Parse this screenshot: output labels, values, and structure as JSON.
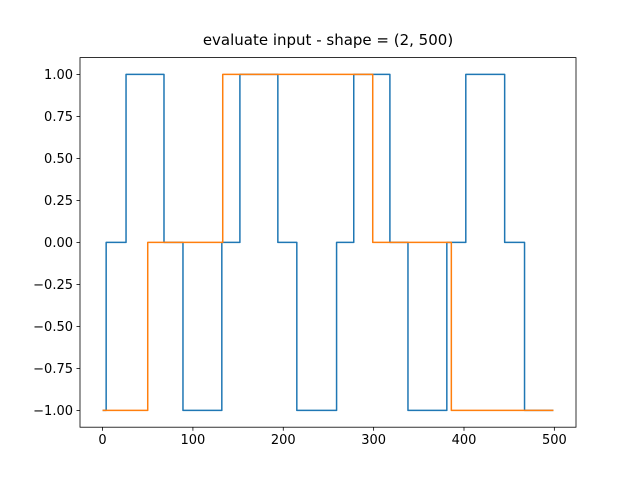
{
  "figure": {
    "background": "#ffffff"
  },
  "chart_data": {
    "type": "line",
    "subtype": "step",
    "title": "evaluate input - shape = (2, 500)",
    "xlabel": "",
    "ylabel": "",
    "grid": false,
    "legend": false,
    "xlim": [
      -24.95,
      523.95
    ],
    "ylim": [
      -1.1,
      1.1
    ],
    "x_ticks": [
      0,
      100,
      200,
      300,
      400,
      500
    ],
    "x_tick_labels": [
      "0",
      "100",
      "200",
      "300",
      "400",
      "500"
    ],
    "y_ticks": [
      1.0,
      0.75,
      0.5,
      0.25,
      0.0,
      -0.25,
      -0.5,
      -0.75,
      -1.0
    ],
    "y_tick_labels": [
      "1.00",
      "0.75",
      "0.50",
      "0.25",
      "0.00",
      "−0.25",
      "−0.50",
      "−0.75",
      "−1.00"
    ],
    "x_end": 499,
    "levels": [
      -1,
      0,
      1
    ],
    "series": [
      {
        "name": "series-0",
        "color": "#1f77b4",
        "transitions": [
          [
            0,
            -1
          ],
          [
            4,
            0
          ],
          [
            26,
            1
          ],
          [
            68,
            0
          ],
          [
            89,
            -1
          ],
          [
            132,
            0
          ],
          [
            152,
            1
          ],
          [
            194,
            0
          ],
          [
            215,
            -1
          ],
          [
            259,
            0
          ],
          [
            278,
            1
          ],
          [
            318,
            0
          ],
          [
            338,
            -1
          ],
          [
            381,
            0
          ],
          [
            402,
            1
          ],
          [
            445,
            0
          ],
          [
            467,
            -1
          ]
        ]
      },
      {
        "name": "series-1",
        "color": "#ff7f0e",
        "transitions": [
          [
            0,
            -1
          ],
          [
            50,
            0
          ],
          [
            133,
            1
          ],
          [
            299,
            0
          ],
          [
            386,
            -1
          ]
        ]
      }
    ],
    "spine_color": "#000000",
    "text_color": "#000000"
  }
}
